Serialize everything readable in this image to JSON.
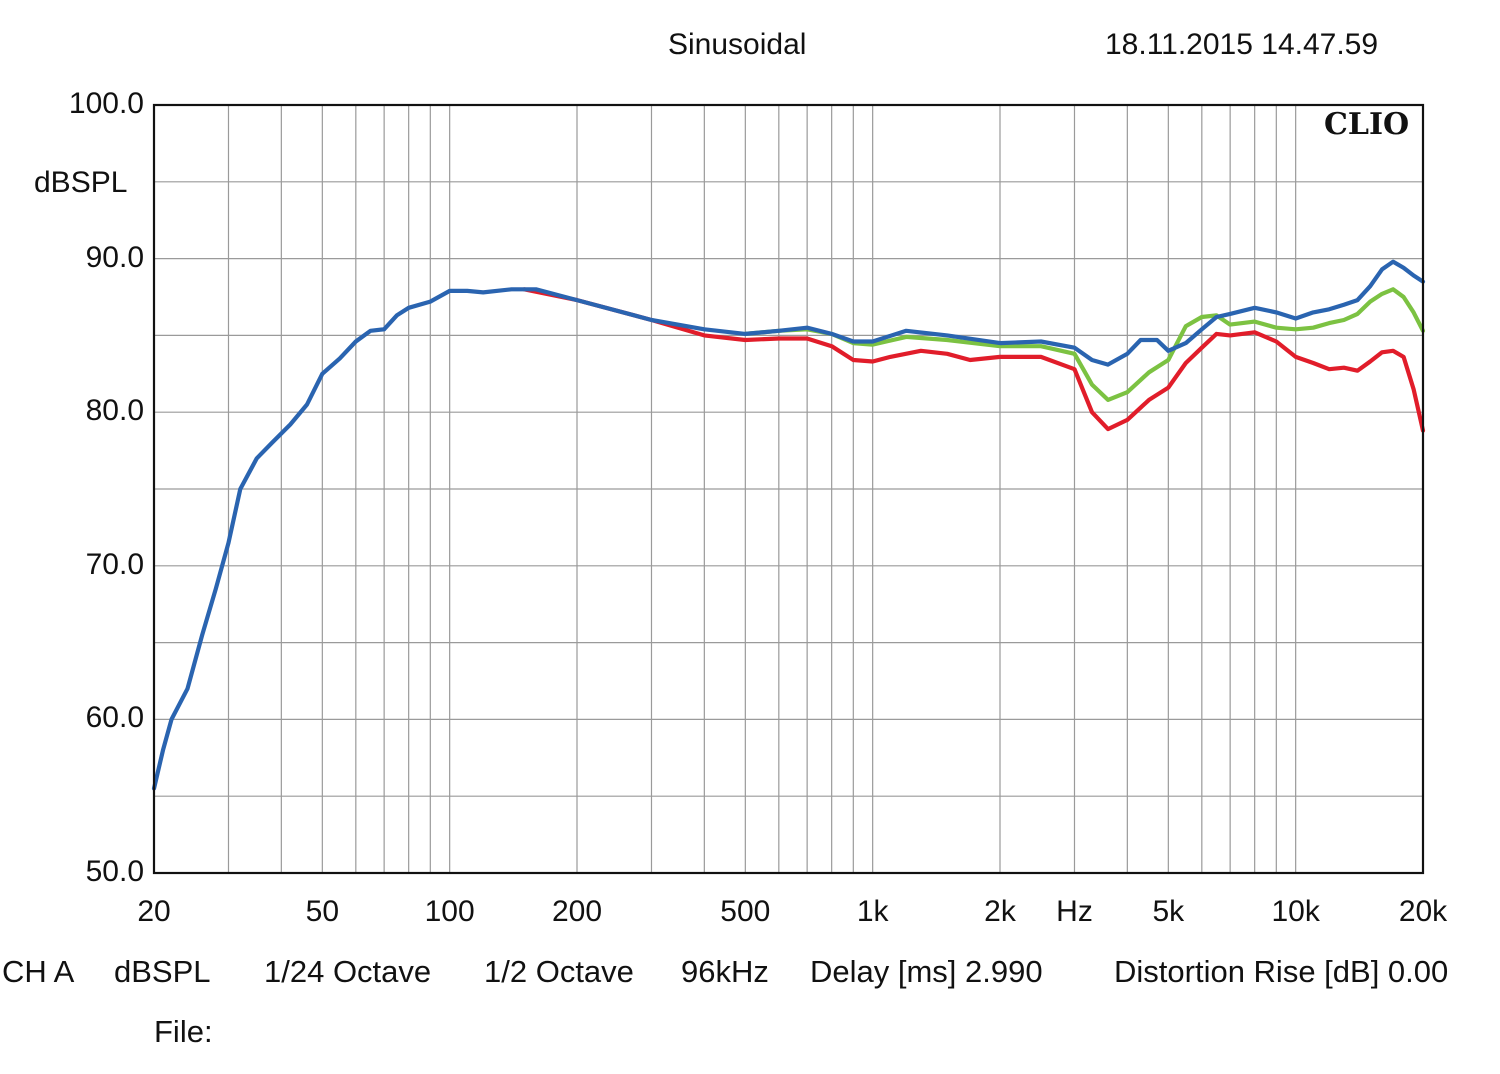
{
  "header": {
    "title": "Sinusoidal",
    "timestamp": "18.11.2015 14.47.59"
  },
  "brand": "CLIO",
  "footer": {
    "channel": "CH A",
    "unit": "dBSPL",
    "resolution": "1/24 Octave",
    "smoothing": "1/2 Octave",
    "sample_rate": "96kHz",
    "delay": "Delay [ms] 2.990",
    "distortion": "Distortion Rise [dB] 0.00",
    "file_label": "File:"
  },
  "chart_data": {
    "type": "line",
    "title": "Sinusoidal",
    "xlabel": "Hz",
    "ylabel": "dBSPL",
    "xscale": "log",
    "xlim": [
      20,
      20000
    ],
    "ylim": [
      50,
      100
    ],
    "grid": true,
    "x_tick_labels": [
      {
        "value": 20,
        "label": "20"
      },
      {
        "value": 50,
        "label": "50"
      },
      {
        "value": 100,
        "label": "100"
      },
      {
        "value": 200,
        "label": "200"
      },
      {
        "value": 500,
        "label": "500"
      },
      {
        "value": 1000,
        "label": "1k"
      },
      {
        "value": 2000,
        "label": "2k"
      },
      {
        "value": 5000,
        "label": "5k"
      },
      {
        "value": 10000,
        "label": "10k"
      },
      {
        "value": 20000,
        "label": "20k"
      }
    ],
    "x_unit_label": "Hz",
    "y_tick_labels": [
      {
        "value": 100,
        "label": "100.0"
      },
      {
        "value": 90,
        "label": "90.0"
      },
      {
        "value": 80,
        "label": "80.0"
      },
      {
        "value": 70,
        "label": "70.0"
      },
      {
        "value": 60,
        "label": "60.0"
      },
      {
        "value": 50,
        "label": "50.0"
      }
    ],
    "series": [
      {
        "color": "#e11d2a",
        "points": [
          [
            150,
            88.0
          ],
          [
            200,
            87.3
          ],
          [
            300,
            86.0
          ],
          [
            400,
            85.0
          ],
          [
            500,
            84.7
          ],
          [
            600,
            84.8
          ],
          [
            700,
            84.8
          ],
          [
            800,
            84.3
          ],
          [
            900,
            83.4
          ],
          [
            1000,
            83.3
          ],
          [
            1100,
            83.6
          ],
          [
            1300,
            84.0
          ],
          [
            1500,
            83.8
          ],
          [
            1700,
            83.4
          ],
          [
            2000,
            83.6
          ],
          [
            2500,
            83.6
          ],
          [
            3000,
            82.8
          ],
          [
            3300,
            80.0
          ],
          [
            3600,
            78.9
          ],
          [
            4000,
            79.5
          ],
          [
            4500,
            80.8
          ],
          [
            5000,
            81.6
          ],
          [
            5500,
            83.2
          ],
          [
            6000,
            84.2
          ],
          [
            6500,
            85.1
          ],
          [
            7000,
            85.0
          ],
          [
            8000,
            85.2
          ],
          [
            9000,
            84.6
          ],
          [
            10000,
            83.6
          ],
          [
            11000,
            83.2
          ],
          [
            12000,
            82.8
          ],
          [
            13000,
            82.9
          ],
          [
            14000,
            82.7
          ],
          [
            15000,
            83.3
          ],
          [
            16000,
            83.9
          ],
          [
            17000,
            84.0
          ],
          [
            18000,
            83.6
          ],
          [
            19000,
            81.5
          ],
          [
            20000,
            78.8
          ]
        ]
      },
      {
        "color": "#7cc242",
        "points": [
          [
            500,
            85.1
          ],
          [
            600,
            85.3
          ],
          [
            700,
            85.4
          ],
          [
            800,
            85.1
          ],
          [
            900,
            84.5
          ],
          [
            1000,
            84.4
          ],
          [
            1200,
            84.9
          ],
          [
            1500,
            84.7
          ],
          [
            2000,
            84.3
          ],
          [
            2500,
            84.3
          ],
          [
            3000,
            83.8
          ],
          [
            3300,
            81.8
          ],
          [
            3600,
            80.8
          ],
          [
            4000,
            81.3
          ],
          [
            4500,
            82.6
          ],
          [
            5000,
            83.4
          ],
          [
            5500,
            85.6
          ],
          [
            6000,
            86.2
          ],
          [
            6500,
            86.3
          ],
          [
            7000,
            85.7
          ],
          [
            8000,
            85.9
          ],
          [
            9000,
            85.5
          ],
          [
            10000,
            85.4
          ],
          [
            11000,
            85.5
          ],
          [
            12000,
            85.8
          ],
          [
            13000,
            86.0
          ],
          [
            14000,
            86.4
          ],
          [
            15000,
            87.2
          ],
          [
            16000,
            87.7
          ],
          [
            17000,
            88.0
          ],
          [
            18000,
            87.5
          ],
          [
            19000,
            86.5
          ],
          [
            20000,
            85.3
          ]
        ]
      },
      {
        "color": "#2a64b0",
        "points": [
          [
            20,
            55.5
          ],
          [
            21,
            58.0
          ],
          [
            22,
            60.0
          ],
          [
            24,
            62.0
          ],
          [
            26,
            65.5
          ],
          [
            28,
            68.5
          ],
          [
            30,
            71.5
          ],
          [
            32,
            75.0
          ],
          [
            35,
            77.0
          ],
          [
            38,
            78.0
          ],
          [
            42,
            79.2
          ],
          [
            46,
            80.5
          ],
          [
            50,
            82.5
          ],
          [
            55,
            83.5
          ],
          [
            60,
            84.6
          ],
          [
            65,
            85.3
          ],
          [
            70,
            85.4
          ],
          [
            75,
            86.3
          ],
          [
            80,
            86.8
          ],
          [
            90,
            87.2
          ],
          [
            100,
            87.9
          ],
          [
            110,
            87.9
          ],
          [
            120,
            87.8
          ],
          [
            140,
            88.0
          ],
          [
            160,
            88.0
          ],
          [
            200,
            87.3
          ],
          [
            300,
            86.0
          ],
          [
            400,
            85.4
          ],
          [
            500,
            85.1
          ],
          [
            600,
            85.3
          ],
          [
            700,
            85.5
          ],
          [
            800,
            85.1
          ],
          [
            900,
            84.6
          ],
          [
            1000,
            84.6
          ],
          [
            1200,
            85.3
          ],
          [
            1500,
            85.0
          ],
          [
            2000,
            84.5
          ],
          [
            2500,
            84.6
          ],
          [
            3000,
            84.2
          ],
          [
            3300,
            83.4
          ],
          [
            3600,
            83.1
          ],
          [
            4000,
            83.8
          ],
          [
            4300,
            84.7
          ],
          [
            4700,
            84.7
          ],
          [
            5000,
            84.0
          ],
          [
            5500,
            84.5
          ],
          [
            6000,
            85.4
          ],
          [
            6500,
            86.2
          ],
          [
            7000,
            86.4
          ],
          [
            8000,
            86.8
          ],
          [
            9000,
            86.5
          ],
          [
            10000,
            86.1
          ],
          [
            11000,
            86.5
          ],
          [
            12000,
            86.7
          ],
          [
            13000,
            87.0
          ],
          [
            14000,
            87.3
          ],
          [
            15000,
            88.2
          ],
          [
            16000,
            89.3
          ],
          [
            17000,
            89.8
          ],
          [
            18000,
            89.4
          ],
          [
            19000,
            88.9
          ],
          [
            20000,
            88.5
          ]
        ]
      }
    ]
  }
}
